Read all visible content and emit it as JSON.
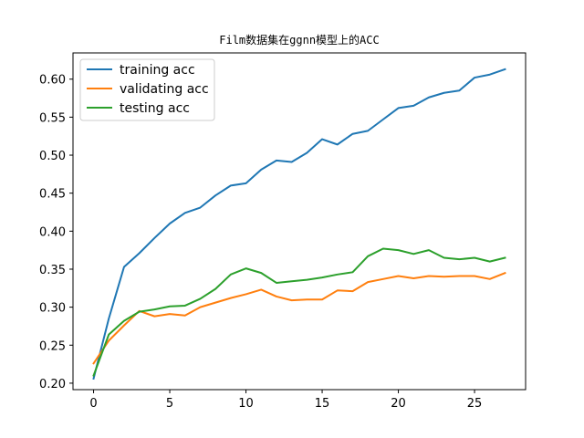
{
  "chart_data": {
    "type": "line",
    "title": "Film数据集在ggnn模型上的ACC",
    "xlabel": "",
    "ylabel": "",
    "xlim": [
      -1.35,
      28.35
    ],
    "ylim": [
      0.1915,
      0.6345
    ],
    "x_ticks": [
      0,
      5,
      10,
      15,
      20,
      25
    ],
    "y_ticks": [
      0.2,
      0.25,
      0.3,
      0.35,
      0.4,
      0.45,
      0.5,
      0.55,
      0.6
    ],
    "x_tick_labels": [
      "0",
      "5",
      "10",
      "15",
      "20",
      "25"
    ],
    "y_tick_labels": [
      "0.20",
      "0.25",
      "0.30",
      "0.35",
      "0.40",
      "0.45",
      "0.50",
      "0.55",
      "0.60"
    ],
    "grid": false,
    "legend_position": "top-left",
    "x": [
      0,
      1,
      2,
      3,
      4,
      5,
      6,
      7,
      8,
      9,
      10,
      11,
      12,
      13,
      14,
      15,
      16,
      17,
      18,
      19,
      20,
      21,
      22,
      23,
      24,
      25,
      26,
      27
    ],
    "series": [
      {
        "name": "training acc",
        "color": "#1f77b4",
        "values": [
          0.206,
          0.285,
          0.353,
          0.371,
          0.391,
          0.41,
          0.424,
          0.431,
          0.447,
          0.46,
          0.463,
          0.481,
          0.493,
          0.491,
          0.503,
          0.521,
          0.514,
          0.528,
          0.532,
          0.547,
          0.562,
          0.565,
          0.576,
          0.582,
          0.585,
          0.602,
          0.606,
          0.613
        ]
      },
      {
        "name": "validating acc",
        "color": "#ff7f0e",
        "values": [
          0.226,
          0.256,
          0.276,
          0.295,
          0.288,
          0.291,
          0.289,
          0.3,
          0.306,
          0.312,
          0.317,
          0.323,
          0.314,
          0.309,
          0.31,
          0.31,
          0.322,
          0.321,
          0.333,
          0.337,
          0.341,
          0.338,
          0.341,
          0.34,
          0.341,
          0.341,
          0.337,
          0.345
        ]
      },
      {
        "name": "testing acc",
        "color": "#2ca02c",
        "values": [
          0.21,
          0.264,
          0.282,
          0.294,
          0.297,
          0.301,
          0.302,
          0.311,
          0.324,
          0.343,
          0.351,
          0.345,
          0.332,
          0.334,
          0.336,
          0.339,
          0.343,
          0.346,
          0.367,
          0.377,
          0.375,
          0.37,
          0.375,
          0.365,
          0.363,
          0.365,
          0.36,
          0.365
        ]
      }
    ]
  }
}
